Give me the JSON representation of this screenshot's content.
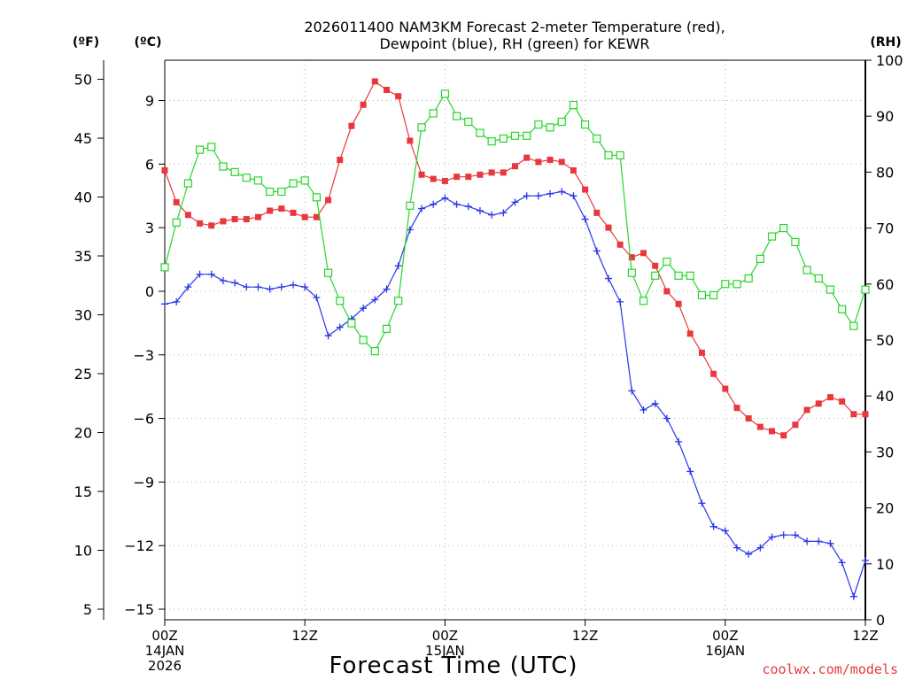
{
  "chart_data": {
    "type": "line",
    "title_line1": "2026011400 NAM3KM Forecast 2-meter Temperature (red),",
    "title_line2": "Dewpoint (blue), RH (green) for KEWR",
    "xlabel": "Forecast Time (UTC)",
    "credit": "coolwx.com/models",
    "unit_f_label": "(ºF)",
    "unit_c_label": "(ºC)",
    "unit_rh_label": "(RH)",
    "x_range_hours": [
      0,
      60
    ],
    "celsius_range": [
      -15.5,
      10.9
    ],
    "rh_range": [
      0,
      100
    ],
    "fahrenheit_ticks": [
      "5",
      "10",
      "15",
      "20",
      "25",
      "30",
      "35",
      "40",
      "45",
      "50"
    ],
    "celsius_ticks": [
      "−15",
      "−12",
      "−9",
      "−6",
      "−3",
      "0",
      "3",
      "6",
      "9"
    ],
    "rh_ticks": [
      "0",
      "10",
      "20",
      "30",
      "40",
      "50",
      "60",
      "70",
      "80",
      "90",
      "100"
    ],
    "x_ticks": [
      {
        "hour": 0,
        "label": "00Z",
        "sub1": "14JAN",
        "sub2": "2026"
      },
      {
        "hour": 12,
        "label": "12Z",
        "sub1": "",
        "sub2": ""
      },
      {
        "hour": 24,
        "label": "00Z",
        "sub1": "15JAN",
        "sub2": ""
      },
      {
        "hour": 36,
        "label": "12Z",
        "sub1": "",
        "sub2": ""
      },
      {
        "hour": 48,
        "label": "00Z",
        "sub1": "16JAN",
        "sub2": ""
      },
      {
        "hour": 60,
        "label": "12Z",
        "sub1": "",
        "sub2": ""
      }
    ],
    "series": [
      {
        "name": "2-meter Temperature (°C)",
        "color": "#e8383d",
        "marker": "filled-square",
        "x": [
          0,
          1,
          2,
          3,
          4,
          5,
          6,
          7,
          8,
          9,
          10,
          11,
          12,
          13,
          14,
          15,
          16,
          17,
          18,
          19,
          20,
          21,
          22,
          23,
          24,
          25,
          26,
          27,
          28,
          29,
          30,
          31,
          32,
          33,
          34,
          35,
          36,
          37,
          38,
          39,
          40,
          41,
          42,
          43,
          44,
          45,
          46,
          47,
          48,
          49,
          50,
          51,
          52,
          53,
          54,
          55,
          56,
          57,
          58,
          59,
          60
        ],
        "values": [
          5.7,
          4.2,
          3.6,
          3.2,
          3.1,
          3.3,
          3.4,
          3.4,
          3.5,
          3.8,
          3.9,
          3.7,
          3.5,
          3.5,
          4.3,
          6.2,
          7.8,
          8.8,
          9.9,
          9.5,
          9.2,
          7.1,
          5.5,
          5.3,
          5.2,
          5.4,
          5.4,
          5.5,
          5.6,
          5.6,
          5.9,
          6.3,
          6.1,
          6.2,
          6.1,
          5.7,
          4.8,
          3.7,
          3.0,
          2.2,
          1.6,
          1.8,
          1.2,
          0.0,
          -0.6,
          -2.0,
          -2.9,
          -3.9,
          -4.6,
          -5.5,
          -6.0,
          -6.4,
          -6.6,
          -6.8,
          -6.3,
          -5.6,
          -5.3,
          -5.0,
          -5.2,
          -5.8,
          -5.8
        ]
      },
      {
        "name": "Dewpoint (°C)",
        "color": "#2a36e8",
        "marker": "plus",
        "x": [
          0,
          1,
          2,
          3,
          4,
          5,
          6,
          7,
          8,
          9,
          10,
          11,
          12,
          13,
          14,
          15,
          16,
          17,
          18,
          19,
          20,
          21,
          22,
          23,
          24,
          25,
          26,
          27,
          28,
          29,
          30,
          31,
          32,
          33,
          34,
          35,
          36,
          37,
          38,
          39,
          40,
          41,
          42,
          43,
          44,
          45,
          46,
          47,
          48,
          49,
          50,
          51,
          52,
          53,
          54,
          55,
          56,
          57,
          58,
          59,
          60
        ],
        "values": [
          -0.6,
          -0.5,
          0.2,
          0.8,
          0.8,
          0.5,
          0.4,
          0.2,
          0.2,
          0.1,
          0.2,
          0.3,
          0.2,
          -0.3,
          -2.1,
          -1.7,
          -1.3,
          -0.8,
          -0.4,
          0.1,
          1.2,
          2.9,
          3.9,
          4.1,
          4.4,
          4.1,
          4.0,
          3.8,
          3.6,
          3.7,
          4.2,
          4.5,
          4.5,
          4.6,
          4.7,
          4.5,
          3.4,
          1.9,
          0.6,
          -0.5,
          -4.7,
          -5.6,
          -5.3,
          -6.0,
          -7.1,
          -8.5,
          -10.0,
          -11.1,
          -11.3,
          -12.1,
          -12.4,
          -12.1,
          -11.6,
          -11.5,
          -11.5,
          -11.8,
          -11.8,
          -11.9,
          -12.8,
          -14.4,
          -12.7
        ]
      },
      {
        "name": "RH (%)",
        "color": "#26d62a",
        "marker": "open-square",
        "x": [
          0,
          1,
          2,
          3,
          4,
          5,
          6,
          7,
          8,
          9,
          10,
          11,
          12,
          13,
          14,
          15,
          16,
          17,
          18,
          19,
          20,
          21,
          22,
          23,
          24,
          25,
          26,
          27,
          28,
          29,
          30,
          31,
          32,
          33,
          34,
          35,
          36,
          37,
          38,
          39,
          40,
          41,
          42,
          43,
          44,
          45,
          46,
          47,
          48,
          49,
          50,
          51,
          52,
          53,
          54,
          55,
          56,
          57,
          58,
          59,
          60
        ],
        "values": [
          63,
          71,
          78,
          84,
          84.5,
          81,
          80,
          79,
          78.5,
          76.5,
          76.5,
          78,
          78.5,
          75.5,
          62,
          57,
          53,
          50,
          48,
          52,
          57,
          74,
          88,
          90.5,
          94,
          90,
          89,
          87,
          85.5,
          86,
          86.5,
          86.5,
          88.5,
          88,
          89,
          92,
          88.5,
          86,
          83,
          83,
          62,
          57,
          61.5,
          64,
          61.5,
          61.5,
          58,
          58,
          60,
          60,
          61,
          64.5,
          68.5,
          70,
          67.5,
          62.5,
          61,
          59,
          55.5,
          52.5,
          59
        ]
      }
    ]
  }
}
